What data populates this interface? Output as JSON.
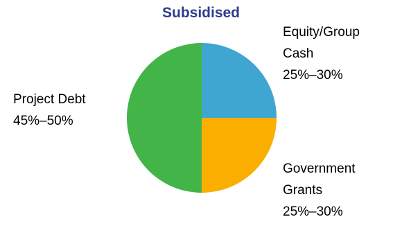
{
  "chart_data": {
    "type": "pie",
    "title": "Subsidised",
    "title_color": "#2E3C8C",
    "slices": [
      {
        "label_lines": [
          "Equity/Group",
          "Cash"
        ],
        "range_text": "25%–30%",
        "value": 25,
        "color": "#3EA6D0"
      },
      {
        "label_lines": [
          "Government",
          "Grants"
        ],
        "range_text": "25%–30%",
        "value": 25,
        "color": "#FAAF00"
      },
      {
        "label_lines": [
          "Project Debt"
        ],
        "range_text": "45%–50%",
        "value": 50,
        "color": "#43B548"
      }
    ]
  }
}
